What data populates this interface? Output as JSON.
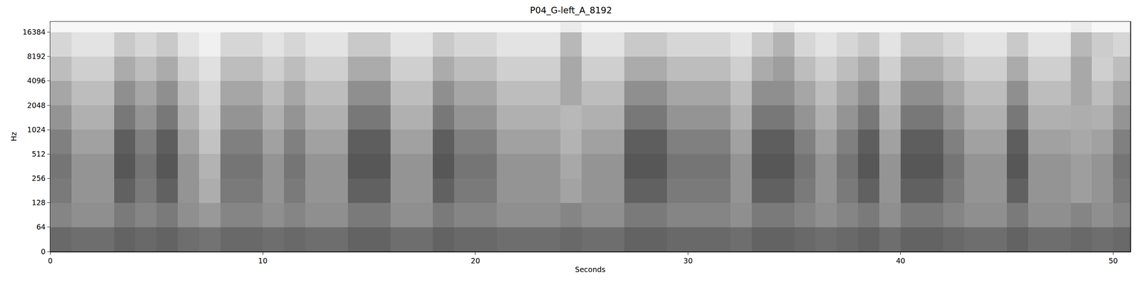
{
  "chart_data": {
    "type": "heatmap",
    "title": "P04_G-left_A_8192",
    "x_label": "Seconds",
    "y_label": "Hz",
    "log": "y",
    "x": [
      0,
      1,
      2,
      3,
      4,
      5,
      6,
      7,
      8,
      9,
      10,
      11,
      12,
      13,
      14,
      15,
      16,
      17,
      18,
      19,
      20,
      21,
      22,
      23,
      24,
      25,
      26,
      27,
      28,
      29,
      30,
      31,
      32,
      33,
      34,
      35,
      36,
      37,
      38,
      39,
      40,
      41,
      42,
      43,
      44,
      45,
      46,
      47,
      48,
      49,
      50,
      51
    ],
    "y": [
      0,
      64,
      128,
      256,
      512,
      1024,
      2048,
      4096,
      8192,
      16384,
      22050
    ],
    "z": [
      [
        59,
        57,
        57,
        61,
        59,
        61,
        57,
        55,
        59,
        59,
        57,
        59,
        57,
        57,
        61,
        61,
        57,
        57,
        61,
        59,
        59,
        57,
        57,
        57,
        59,
        57,
        57,
        61,
        61,
        59,
        59,
        59,
        57,
        61,
        61,
        59,
        57,
        59,
        61,
        57,
        61,
        61,
        59,
        57,
        57,
        61,
        57,
        57,
        59,
        57,
        59
      ],
      [
        48,
        44,
        44,
        52,
        48,
        52,
        44,
        40,
        48,
        48,
        44,
        48,
        44,
        44,
        52,
        52,
        44,
        44,
        52,
        48,
        48,
        44,
        44,
        44,
        48,
        44,
        44,
        52,
        52,
        48,
        48,
        48,
        44,
        52,
        52,
        48,
        44,
        48,
        52,
        44,
        52,
        52,
        48,
        44,
        44,
        52,
        44,
        44,
        48,
        44,
        48
      ],
      [
        52,
        42,
        42,
        62,
        52,
        62,
        42,
        32,
        52,
        52,
        42,
        52,
        42,
        42,
        62,
        62,
        42,
        42,
        62,
        52,
        52,
        42,
        42,
        42,
        36,
        42,
        42,
        62,
        62,
        52,
        52,
        52,
        42,
        62,
        62,
        52,
        42,
        52,
        62,
        42,
        62,
        62,
        52,
        42,
        42,
        62,
        42,
        42,
        38,
        42,
        52
      ],
      [
        54,
        42,
        42,
        66,
        54,
        66,
        42,
        30,
        54,
        54,
        42,
        54,
        42,
        42,
        66,
        66,
        42,
        42,
        66,
        54,
        54,
        42,
        42,
        42,
        34,
        42,
        42,
        66,
        66,
        54,
        54,
        54,
        42,
        66,
        66,
        54,
        42,
        54,
        66,
        42,
        66,
        66,
        54,
        42,
        42,
        66,
        42,
        42,
        38,
        42,
        54
      ],
      [
        50,
        37,
        37,
        63,
        50,
        63,
        37,
        24,
        50,
        50,
        37,
        50,
        37,
        37,
        63,
        63,
        37,
        37,
        63,
        50,
        50,
        37,
        37,
        37,
        30,
        37,
        37,
        63,
        63,
        50,
        50,
        50,
        37,
        63,
        63,
        50,
        37,
        50,
        63,
        37,
        63,
        63,
        50,
        37,
        37,
        63,
        37,
        37,
        34,
        37,
        50
      ],
      [
        42,
        31,
        31,
        53,
        42,
        53,
        31,
        20,
        42,
        42,
        31,
        42,
        31,
        31,
        53,
        53,
        31,
        31,
        53,
        42,
        42,
        31,
        31,
        31,
        28,
        31,
        31,
        53,
        53,
        42,
        42,
        42,
        31,
        53,
        53,
        42,
        31,
        42,
        53,
        31,
        53,
        53,
        42,
        31,
        31,
        53,
        31,
        31,
        32,
        31,
        42
      ],
      [
        35,
        26,
        26,
        44,
        35,
        44,
        26,
        17,
        35,
        35,
        26,
        35,
        26,
        26,
        44,
        44,
        26,
        26,
        44,
        35,
        35,
        26,
        26,
        26,
        34,
        26,
        26,
        44,
        44,
        35,
        35,
        35,
        26,
        44,
        44,
        35,
        26,
        35,
        44,
        26,
        44,
        44,
        35,
        26,
        26,
        44,
        26,
        26,
        34,
        26,
        35
      ],
      [
        26,
        19,
        19,
        33,
        26,
        33,
        19,
        12,
        26,
        26,
        19,
        26,
        19,
        19,
        33,
        33,
        19,
        19,
        33,
        26,
        26,
        19,
        19,
        19,
        34,
        19,
        19,
        33,
        33,
        26,
        26,
        26,
        19,
        33,
        38,
        26,
        19,
        26,
        33,
        19,
        33,
        33,
        26,
        19,
        19,
        33,
        19,
        19,
        34,
        19,
        26
      ],
      [
        16,
        11,
        11,
        21,
        16,
        21,
        11,
        6,
        16,
        16,
        11,
        16,
        11,
        11,
        21,
        21,
        11,
        11,
        21,
        16,
        16,
        11,
        11,
        11,
        28,
        11,
        11,
        21,
        21,
        16,
        16,
        16,
        11,
        21,
        30,
        16,
        11,
        16,
        21,
        11,
        21,
        21,
        16,
        11,
        11,
        21,
        11,
        11,
        28,
        20,
        16
      ],
      [
        3,
        3,
        3,
        3,
        3,
        3,
        3,
        3,
        3,
        3,
        3,
        3,
        3,
        3,
        3,
        3,
        3,
        3,
        3,
        3,
        3,
        3,
        3,
        3,
        8,
        3,
        3,
        3,
        3,
        3,
        3,
        3,
        3,
        3,
        8,
        3,
        3,
        3,
        3,
        3,
        3,
        3,
        3,
        3,
        3,
        3,
        3,
        3,
        8,
        3,
        3
      ]
    ],
    "zlim": [
      0,
      100
    ],
    "xlim": [
      0,
      50.8
    ],
    "ylim": [
      0,
      22050
    ],
    "xticks": [
      0,
      10,
      20,
      30,
      40,
      50
    ],
    "yticks": [
      0,
      64,
      128,
      256,
      512,
      1024,
      2048,
      4096,
      8192,
      16384
    ]
  }
}
